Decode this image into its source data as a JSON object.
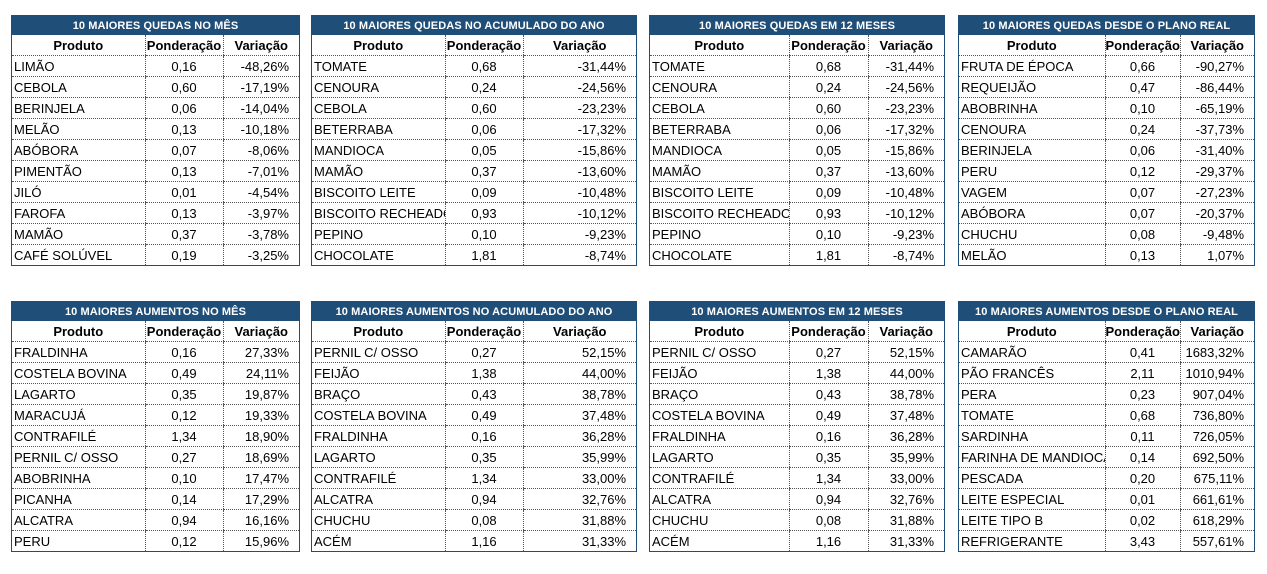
{
  "columns": {
    "produto": "Produto",
    "ponderacao": "Ponderação",
    "variacao": "Variação"
  },
  "tables": [
    {
      "title": "10 MAIORES QUEDAS NO MÊS",
      "rows": [
        [
          "LIMÃO",
          "0,16",
          "-48,26%"
        ],
        [
          "CEBOLA",
          "0,60",
          "-17,19%"
        ],
        [
          "BERINJELA",
          "0,06",
          "-14,04%"
        ],
        [
          "MELÃO",
          "0,13",
          "-10,18%"
        ],
        [
          "ABÓBORA",
          "0,07",
          "-8,06%"
        ],
        [
          "PIMENTÃO",
          "0,13",
          "-7,01%"
        ],
        [
          "JILÓ",
          "0,01",
          "-4,54%"
        ],
        [
          "FAROFA",
          "0,13",
          "-3,97%"
        ],
        [
          "MAMÃO",
          "0,37",
          "-3,78%"
        ],
        [
          "CAFÉ SOLÚVEL",
          "0,19",
          "-3,25%"
        ]
      ]
    },
    {
      "title": "10 MAIORES QUEDAS NO ACUMULADO DO ANO",
      "rows": [
        [
          "TOMATE",
          "0,68",
          "-31,44%"
        ],
        [
          "CENOURA",
          "0,24",
          "-24,56%"
        ],
        [
          "CEBOLA",
          "0,60",
          "-23,23%"
        ],
        [
          "BETERRABA",
          "0,06",
          "-17,32%"
        ],
        [
          "MANDIOCA",
          "0,05",
          "-15,86%"
        ],
        [
          "MAMÃO",
          "0,37",
          "-13,60%"
        ],
        [
          "BISCOITO LEITE",
          "0,09",
          "-10,48%"
        ],
        [
          "BISCOITO RECHEADO",
          "0,93",
          "-10,12%"
        ],
        [
          "PEPINO",
          "0,10",
          "-9,23%"
        ],
        [
          "CHOCOLATE",
          "1,81",
          "-8,74%"
        ]
      ]
    },
    {
      "title": "10 MAIORES QUEDAS EM 12 MESES",
      "rows": [
        [
          "TOMATE",
          "0,68",
          "-31,44%"
        ],
        [
          "CENOURA",
          "0,24",
          "-24,56%"
        ],
        [
          "CEBOLA",
          "0,60",
          "-23,23%"
        ],
        [
          "BETERRABA",
          "0,06",
          "-17,32%"
        ],
        [
          "MANDIOCA",
          "0,05",
          "-15,86%"
        ],
        [
          "MAMÃO",
          "0,37",
          "-13,60%"
        ],
        [
          "BISCOITO LEITE",
          "0,09",
          "-10,48%"
        ],
        [
          "BISCOITO RECHEADO",
          "0,93",
          "-10,12%"
        ],
        [
          "PEPINO",
          "0,10",
          "-9,23%"
        ],
        [
          "CHOCOLATE",
          "1,81",
          "-8,74%"
        ]
      ]
    },
    {
      "title": "10 MAIORES QUEDAS DESDE O PLANO REAL",
      "rows": [
        [
          "FRUTA DE ÉPOCA",
          "0,66",
          "-90,27%"
        ],
        [
          "REQUEIJÃO",
          "0,47",
          "-86,44%"
        ],
        [
          "ABOBRINHA",
          "0,10",
          "-65,19%"
        ],
        [
          "CENOURA",
          "0,24",
          "-37,73%"
        ],
        [
          "BERINJELA",
          "0,06",
          "-31,40%"
        ],
        [
          "PERU",
          "0,12",
          "-29,37%"
        ],
        [
          "VAGEM",
          "0,07",
          "-27,23%"
        ],
        [
          "ABÓBORA",
          "0,07",
          "-20,37%"
        ],
        [
          "CHUCHU",
          "0,08",
          "-9,48%"
        ],
        [
          "MELÃO",
          "0,13",
          "1,07%"
        ]
      ]
    },
    {
      "title": "10 MAIORES AUMENTOS NO MÊS",
      "rows": [
        [
          "FRALDINHA",
          "0,16",
          "27,33%"
        ],
        [
          "COSTELA BOVINA",
          "0,49",
          "24,11%"
        ],
        [
          "LAGARTO",
          "0,35",
          "19,87%"
        ],
        [
          "MARACUJÁ",
          "0,12",
          "19,33%"
        ],
        [
          "CONTRAFILÉ",
          "1,34",
          "18,90%"
        ],
        [
          "PERNIL C/ OSSO",
          "0,27",
          "18,69%"
        ],
        [
          "ABOBRINHA",
          "0,10",
          "17,47%"
        ],
        [
          "PICANHA",
          "0,14",
          "17,29%"
        ],
        [
          "ALCATRA",
          "0,94",
          "16,16%"
        ],
        [
          "PERU",
          "0,12",
          "15,96%"
        ]
      ]
    },
    {
      "title": "10 MAIORES AUMENTOS NO ACUMULADO DO ANO",
      "rows": [
        [
          "PERNIL C/ OSSO",
          "0,27",
          "52,15%"
        ],
        [
          "FEIJÃO",
          "1,38",
          "44,00%"
        ],
        [
          "BRAÇO",
          "0,43",
          "38,78%"
        ],
        [
          "COSTELA BOVINA",
          "0,49",
          "37,48%"
        ],
        [
          "FRALDINHA",
          "0,16",
          "36,28%"
        ],
        [
          "LAGARTO",
          "0,35",
          "35,99%"
        ],
        [
          "CONTRAFILÉ",
          "1,34",
          "33,00%"
        ],
        [
          "ALCATRA",
          "0,94",
          "32,76%"
        ],
        [
          "CHUCHU",
          "0,08",
          "31,88%"
        ],
        [
          "ACÉM",
          "1,16",
          "31,33%"
        ]
      ]
    },
    {
      "title": "10 MAIORES AUMENTOS EM 12 MESES",
      "rows": [
        [
          "PERNIL C/ OSSO",
          "0,27",
          "52,15%"
        ],
        [
          "FEIJÃO",
          "1,38",
          "44,00%"
        ],
        [
          "BRAÇO",
          "0,43",
          "38,78%"
        ],
        [
          "COSTELA BOVINA",
          "0,49",
          "37,48%"
        ],
        [
          "FRALDINHA",
          "0,16",
          "36,28%"
        ],
        [
          "LAGARTO",
          "0,35",
          "35,99%"
        ],
        [
          "CONTRAFILÉ",
          "1,34",
          "33,00%"
        ],
        [
          "ALCATRA",
          "0,94",
          "32,76%"
        ],
        [
          "CHUCHU",
          "0,08",
          "31,88%"
        ],
        [
          "ACÉM",
          "1,16",
          "31,33%"
        ]
      ]
    },
    {
      "title": "10 MAIORES AUMENTOS  DESDE O PLANO REAL",
      "rows": [
        [
          "CAMARÃO",
          "0,41",
          "1683,32%"
        ],
        [
          "PÃO FRANCÊS",
          "2,11",
          "1010,94%"
        ],
        [
          "PERA",
          "0,23",
          "907,04%"
        ],
        [
          "TOMATE",
          "0,68",
          "736,80%"
        ],
        [
          "SARDINHA",
          "0,11",
          "726,05%"
        ],
        [
          "FARINHA DE MANDIOCA",
          "0,14",
          "692,50%"
        ],
        [
          "PESCADA",
          "0,20",
          "675,11%"
        ],
        [
          "LEITE ESPECIAL",
          "0,01",
          "661,61%"
        ],
        [
          "LEITE TIPO B",
          "0,02",
          "618,29%"
        ],
        [
          "REFRIGERANTE",
          "3,43",
          "557,61%"
        ]
      ]
    }
  ]
}
